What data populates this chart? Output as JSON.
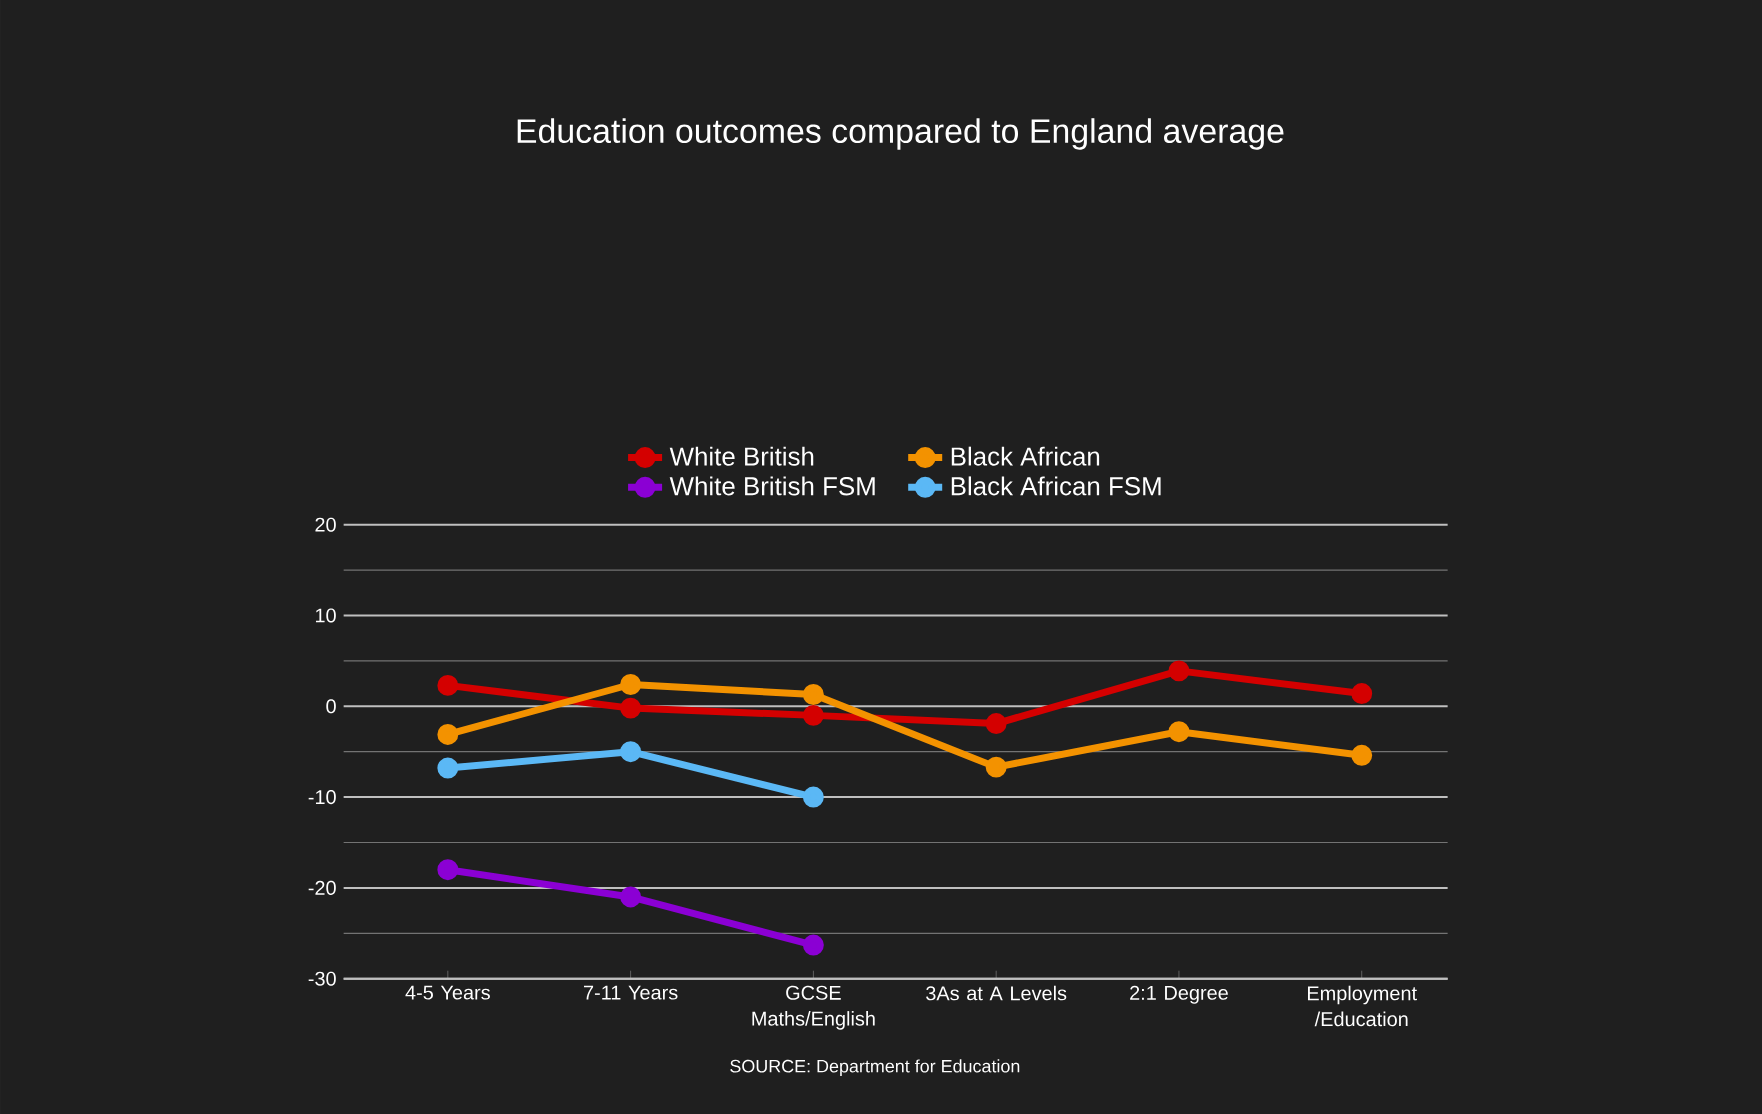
{
  "chart_data": {
    "type": "line",
    "title": "Education outcomes compared to England average",
    "categories": [
      "4-5 Years",
      "7-11 Years",
      "GCSE Maths/English",
      "3As at A Levels",
      "2:1 Degree",
      "Employment /Education"
    ],
    "series": [
      {
        "name": "White British",
        "color": "#d40000",
        "values": [
          2.3,
          -0.2,
          -1,
          -1.9,
          3.9,
          1.4
        ]
      },
      {
        "name": "Black African",
        "color": "#f39200",
        "values": [
          -3.1,
          2.4,
          1.3,
          -6.7,
          -2.8,
          -5.4
        ]
      },
      {
        "name": "White British FSM",
        "color": "#8b00d4",
        "values": [
          -18,
          -21,
          -26.3,
          null,
          null,
          null
        ]
      },
      {
        "name": "Black African FSM",
        "color": "#5bb8f5",
        "values": [
          -6.8,
          -5,
          -10,
          null,
          null,
          null
        ]
      }
    ],
    "ylim": [
      -30,
      20
    ],
    "yticks": [
      -30,
      {
        "value": -25,
        "label": null
      },
      -20,
      {
        "value": -15,
        "label": null
      },
      -10,
      {
        "value": -5,
        "label": null
      },
      0,
      {
        "value": 5,
        "label": null
      },
      10,
      {
        "value": 15,
        "label": null
      },
      20
    ],
    "grid": "y",
    "legend": "top",
    "marker": "circle",
    "line_style": "solid",
    "annotations": [
      "SOURCE: Department for Education"
    ]
  }
}
